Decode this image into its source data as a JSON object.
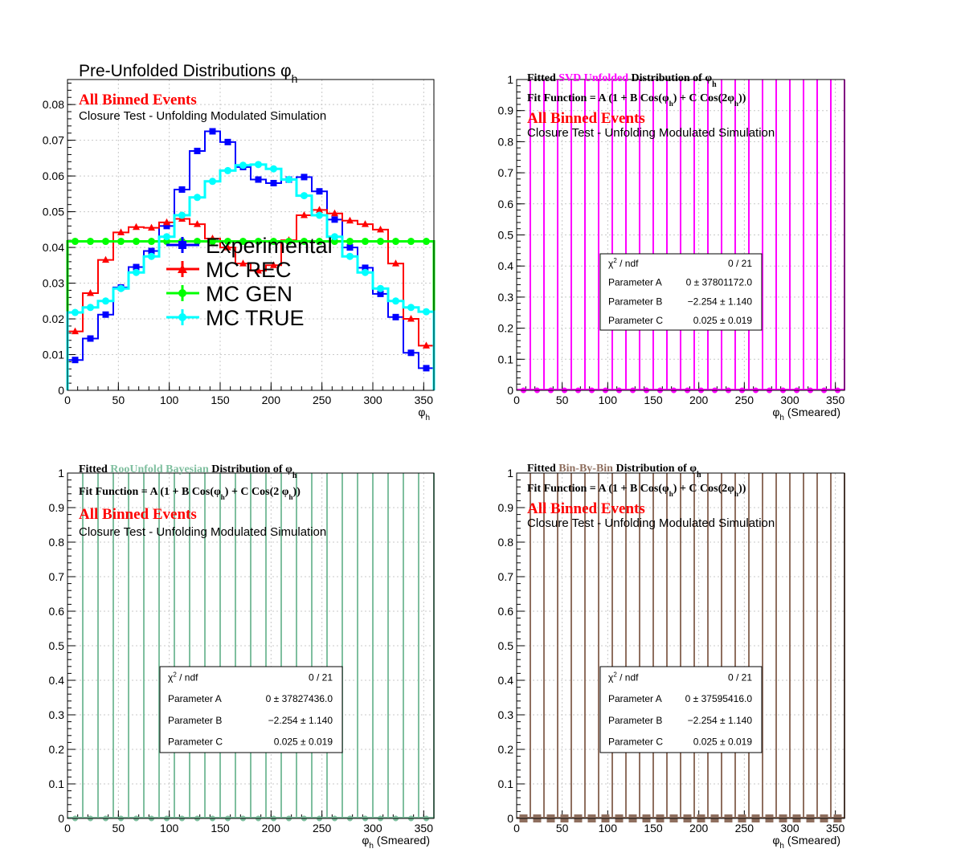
{
  "chart_data": [
    {
      "type": "histogram",
      "title_main": "Pre-Unfolded Distributions ",
      "title_sym": "φ",
      "title_sub": "h",
      "label_events": "All Binned Events",
      "label_closure": "Closure Test - Unfolding Modulated Simulation",
      "xlabel_sym": "φ",
      "xlabel_sub": "h",
      "xlabel_rest": "",
      "xlim": [
        0,
        360
      ],
      "ylim": [
        0,
        0.087
      ],
      "yticks": [
        "0",
        "0.01",
        "0.02",
        "0.03",
        "0.04",
        "0.05",
        "0.06",
        "0.07",
        "0.08"
      ],
      "ytick_values": [
        0,
        0.01,
        0.02,
        0.03,
        0.04,
        0.05,
        0.06,
        0.07,
        0.08
      ],
      "xticks": [
        "0",
        "50",
        "100",
        "150",
        "200",
        "250",
        "300",
        "350"
      ],
      "xtick_values": [
        0,
        50,
        100,
        150,
        200,
        250,
        300,
        350
      ],
      "bin_width": 15,
      "grid": true,
      "legend_position": "center",
      "series": [
        {
          "name": "Experimental",
          "color": "#0000ff",
          "marker": "square",
          "values": [
            0.0085,
            0.0145,
            0.0212,
            0.0288,
            0.0345,
            0.039,
            0.046,
            0.0562,
            0.067,
            0.0725,
            0.0695,
            0.0625,
            0.059,
            0.058,
            0.059,
            0.0597,
            0.0557,
            0.0478,
            0.04,
            0.0343,
            0.027,
            0.0205,
            0.0105,
            0.0062
          ]
        },
        {
          "name": "MC REC",
          "color": "#ff0000",
          "marker": "triangle",
          "values": [
            0.0165,
            0.0272,
            0.0365,
            0.0442,
            0.0457,
            0.0455,
            0.047,
            0.048,
            0.0465,
            0.0425,
            0.04,
            0.0355,
            0.0335,
            0.035,
            0.042,
            0.049,
            0.0505,
            0.0495,
            0.0475,
            0.0465,
            0.045,
            0.0355,
            0.02,
            0.0125
          ]
        },
        {
          "name": "MC GEN",
          "color": "#00ff00",
          "marker": "circle",
          "values": [
            0.0417,
            0.0417,
            0.0417,
            0.0417,
            0.0417,
            0.0417,
            0.0417,
            0.0417,
            0.0417,
            0.0417,
            0.0417,
            0.0417,
            0.0417,
            0.0417,
            0.0417,
            0.0417,
            0.0417,
            0.0417,
            0.0417,
            0.0417,
            0.0417,
            0.0417,
            0.0417,
            0.0417
          ]
        },
        {
          "name": "MC TRUE",
          "color": "#00ffff",
          "marker": "circle",
          "values": [
            0.0218,
            0.0232,
            0.025,
            0.0285,
            0.033,
            0.0375,
            0.043,
            0.049,
            0.054,
            0.0585,
            0.0615,
            0.063,
            0.0632,
            0.062,
            0.059,
            0.0545,
            0.049,
            0.043,
            0.0375,
            0.033,
            0.0285,
            0.025,
            0.0232,
            0.022
          ]
        }
      ]
    },
    {
      "type": "histogram",
      "title_html": [
        [
          "Fitted ",
          "#000000"
        ],
        [
          " SVD Unfolded ",
          "#ff00ff"
        ],
        [
          " Distribution of ",
          "#000000"
        ]
      ],
      "title_sym": "φ",
      "title_sub": "h",
      "fit_function_parts": [
        "Fit Function = A (1 + B Cos(",
        "φ",
        "h",
        ") + C Cos(2",
        "φ",
        "h",
        "))"
      ],
      "label_events": "All Binned Events",
      "label_closure": "Closure Test - Unfolding Modulated Simulation",
      "xlabel_sym": "φ",
      "xlabel_sub": "h",
      "xlabel_rest": " (Smeared)",
      "xlim": [
        0,
        360
      ],
      "ylim": [
        0,
        1
      ],
      "yticks": [
        "0",
        "0.1",
        "0.2",
        "0.3",
        "0.4",
        "0.5",
        "0.6",
        "0.7",
        "0.8",
        "0.9",
        "1"
      ],
      "ytick_values": [
        0,
        0.1,
        0.2,
        0.3,
        0.4,
        0.5,
        0.6,
        0.7,
        0.8,
        0.9,
        1
      ],
      "xticks": [
        "0",
        "50",
        "100",
        "150",
        "200",
        "250",
        "300",
        "350"
      ],
      "xtick_values": [
        0,
        50,
        100,
        150,
        200,
        250,
        300,
        350
      ],
      "bin_width": 15,
      "color": "#ff00ff",
      "bar_marker": "circle",
      "grid": true,
      "stats": {
        "chi2_label": "χ",
        "chi2_sup": "2",
        "chi2_rest": " / ndf",
        "chi2_value": "0 / 21",
        "params": [
          {
            "label": "Parameter A",
            "value": "0 ± 37801172.0"
          },
          {
            "label": "Parameter B",
            "value": "−2.254 ± 1.140"
          },
          {
            "label": "Parameter C",
            "value": "0.025 ± 0.019"
          }
        ]
      }
    },
    {
      "type": "histogram",
      "title_html": [
        [
          "Fitted ",
          "#000000"
        ],
        [
          " RooUnfold Bayesian ",
          "#7fbf9f"
        ],
        [
          " Distribution of ",
          "#000000"
        ]
      ],
      "title_sym": "φ",
      "title_sub": "h",
      "fit_function_parts": [
        "Fit Function = A (1 + B Cos(",
        "φ",
        "h",
        ") + C Cos(2 ",
        "φ",
        "h",
        "))"
      ],
      "label_events": "All Binned Events",
      "label_closure": "Closure Test - Unfolding Modulated Simulation",
      "xlabel_sym": "φ",
      "xlabel_sub": "h",
      "xlabel_rest": " (Smeared)",
      "xlim": [
        0,
        360
      ],
      "ylim": [
        0,
        1
      ],
      "yticks": [
        "0",
        "0.1",
        "0.2",
        "0.3",
        "0.4",
        "0.5",
        "0.6",
        "0.7",
        "0.8",
        "0.9",
        "1"
      ],
      "ytick_values": [
        0,
        0.1,
        0.2,
        0.3,
        0.4,
        0.5,
        0.6,
        0.7,
        0.8,
        0.9,
        1
      ],
      "xticks": [
        "0",
        "50",
        "100",
        "150",
        "200",
        "250",
        "300",
        "350"
      ],
      "xtick_values": [
        0,
        50,
        100,
        150,
        200,
        250,
        300,
        350
      ],
      "bin_width": 15,
      "color": "#7fbf9f",
      "bar_marker": "circle",
      "grid": true,
      "stats": {
        "chi2_label": "χ",
        "chi2_sup": "2",
        "chi2_rest": " / ndf",
        "chi2_value": "0 / 21",
        "params": [
          {
            "label": "Parameter A",
            "value": "0 ± 37827436.0"
          },
          {
            "label": "Parameter B",
            "value": "−2.254 ± 1.140"
          },
          {
            "label": "Parameter C",
            "value": "0.025 ± 0.019"
          }
        ]
      }
    },
    {
      "type": "histogram",
      "title_html": [
        [
          "Fitted ",
          "#000000"
        ],
        [
          " Bin-By-Bin ",
          "#8f6f5f"
        ],
        [
          " Distribution of ",
          "#000000"
        ]
      ],
      "title_sym": "φ",
      "title_sub": "h",
      "fit_function_parts": [
        "Fit Function = A (1 + B Cos(",
        "φ",
        "h",
        ") + C Cos(2",
        "φ",
        "h",
        "))"
      ],
      "label_events": "All Binned Events",
      "label_closure": "Closure Test - Unfolding Modulated Simulation",
      "xlabel_sym": "φ",
      "xlabel_sub": "h",
      "xlabel_rest": " (Smeared)",
      "xlim": [
        0,
        360
      ],
      "ylim": [
        0,
        1
      ],
      "yticks": [
        "0",
        "0.1",
        "0.2",
        "0.3",
        "0.4",
        "0.5",
        "0.6",
        "0.7",
        "0.8",
        "0.9",
        "1"
      ],
      "ytick_values": [
        0,
        0.1,
        0.2,
        0.3,
        0.4,
        0.5,
        0.6,
        0.7,
        0.8,
        0.9,
        1
      ],
      "xticks": [
        "0",
        "50",
        "100",
        "150",
        "200",
        "250",
        "300",
        "350"
      ],
      "xtick_values": [
        0,
        50,
        100,
        150,
        200,
        250,
        300,
        350
      ],
      "bin_width": 15,
      "color": "#8f6f5f",
      "bar_marker": "square",
      "grid": true,
      "stats": {
        "chi2_label": "χ",
        "chi2_sup": "2",
        "chi2_rest": " / ndf",
        "chi2_value": "0 / 21",
        "params": [
          {
            "label": "Parameter A",
            "value": "0 ± 37595416.0"
          },
          {
            "label": "Parameter B",
            "value": "−2.254 ± 1.140"
          },
          {
            "label": "Parameter C",
            "value": "0.025 ± 0.019"
          }
        ]
      }
    }
  ]
}
